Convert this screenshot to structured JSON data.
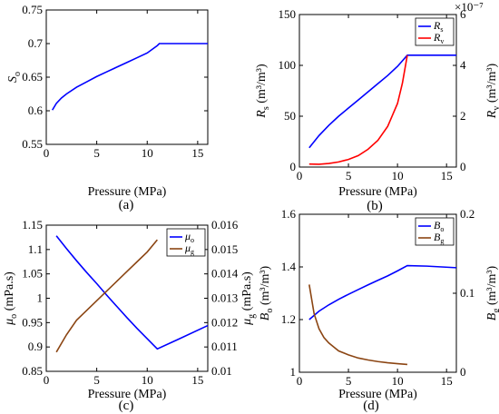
{
  "chart_data": [
    {
      "type": "line",
      "panel": "a",
      "caption": "(a)",
      "xlabel": "Pressure (MPa)",
      "ylabel": "S_o",
      "xlim": [
        0,
        16
      ],
      "ylim": [
        0.55,
        0.75
      ],
      "xticks": [
        0,
        5,
        10,
        15
      ],
      "yticks": [
        0.55,
        0.6,
        0.65,
        0.7,
        0.75
      ],
      "ytick_labels": [
        "0.55",
        "0.6",
        "0.65",
        "0.7",
        "0.75"
      ],
      "series": [
        {
          "axis": "left",
          "color": "#0000ff",
          "x": [
            0.6,
            1,
            1.5,
            2,
            3,
            4,
            5,
            6,
            7,
            8,
            9,
            10,
            11,
            11.2,
            13,
            16
          ],
          "y": [
            0.601,
            0.611,
            0.619,
            0.625,
            0.635,
            0.643,
            0.651,
            0.658,
            0.665,
            0.672,
            0.679,
            0.686,
            0.697,
            0.7,
            0.7,
            0.7
          ]
        }
      ]
    },
    {
      "type": "line",
      "panel": "b",
      "caption": "(b)",
      "xlabel": "Pressure (MPa)",
      "ylabel": "R_s (m^3/m^3)",
      "ylabel_main": "R",
      "ylabel_sub": "s",
      "ylabel_unit": " (m³/m³)",
      "y2label": "R_v (m^3/m^3)",
      "y2label_main": "R",
      "y2label_sub": "v",
      "y2label_unit": " (m³/m³)",
      "y2_exponent": "×10⁻⁷",
      "xlim": [
        0,
        16
      ],
      "ylim": [
        0,
        150
      ],
      "y2lim": [
        0,
        6
      ],
      "xticks": [
        0,
        5,
        10,
        15
      ],
      "yticks": [
        0,
        50,
        100,
        150
      ],
      "y2ticks": [
        0,
        2,
        4,
        6
      ],
      "legend": [
        "R_s",
        "R_v"
      ],
      "legend_main": [
        "R",
        "R"
      ],
      "legend_sub": [
        "s",
        "v"
      ],
      "series": [
        {
          "name": "R_s",
          "axis": "left",
          "color": "#0000ff",
          "x": [
            1,
            2,
            3,
            4,
            5,
            6,
            7,
            8,
            9,
            10,
            11,
            13,
            16
          ],
          "y": [
            19,
            31,
            41,
            50,
            58,
            66,
            74,
            82,
            90,
            99,
            110,
            110,
            110
          ]
        },
        {
          "name": "R_v",
          "axis": "right",
          "color": "#ff0000",
          "x": [
            1,
            2,
            3,
            4,
            5,
            6,
            7,
            8,
            9,
            10,
            10.5,
            11
          ],
          "y": [
            0.12,
            0.11,
            0.14,
            0.2,
            0.3,
            0.45,
            0.7,
            1.05,
            1.6,
            2.5,
            3.3,
            4.4
          ]
        }
      ]
    },
    {
      "type": "line",
      "panel": "c",
      "caption": "(c)",
      "xlabel": "Pressure (MPa)",
      "ylabel": "μ_o (mPa.s)",
      "ylabel_main": "μ",
      "ylabel_sub": "o",
      "ylabel_unit": " (mPa.s)",
      "y2label": "μ_g (mPa.s)",
      "y2label_main": "μ",
      "y2label_sub": "g",
      "y2label_unit": " (mPa.s)",
      "xlim": [
        0,
        16
      ],
      "ylim": [
        0.85,
        1.15
      ],
      "y2lim": [
        0.01,
        0.016
      ],
      "xticks": [
        0,
        5,
        10,
        15
      ],
      "yticks": [
        0.85,
        0.9,
        0.95,
        1,
        1.05,
        1.1,
        1.15
      ],
      "ytick_labels": [
        "0.85",
        "0.9",
        "0.95",
        "1",
        "1.05",
        "1.1",
        "1.15"
      ],
      "y2ticks": [
        0.01,
        0.011,
        0.012,
        0.013,
        0.014,
        0.015,
        0.016
      ],
      "y2tick_labels": [
        "0.01",
        "0.011",
        "0.012",
        "0.013",
        "0.014",
        "0.015",
        "0.016"
      ],
      "legend": [
        "μ_o",
        "μ_g"
      ],
      "legend_main": [
        "μ",
        "μ"
      ],
      "legend_sub": [
        "o",
        "g"
      ],
      "series": [
        {
          "name": "μ_o",
          "axis": "left",
          "color": "#0000ff",
          "x": [
            1,
            2,
            3,
            4,
            5,
            6,
            7,
            8,
            9,
            10,
            11,
            13,
            16
          ],
          "y": [
            1.128,
            1.102,
            1.077,
            1.053,
            1.03,
            1.006,
            0.983,
            0.96,
            0.938,
            0.917,
            0.896,
            0.915,
            0.944
          ]
        },
        {
          "name": "μ_g",
          "axis": "right",
          "color": "#8b4513",
          "x": [
            1,
            2,
            3,
            4,
            5,
            6,
            7,
            8,
            9,
            10,
            11
          ],
          "y": [
            0.01079,
            0.0115,
            0.0121,
            0.0125,
            0.0129,
            0.0133,
            0.0137,
            0.0141,
            0.0145,
            0.0149,
            0.0154
          ]
        }
      ]
    },
    {
      "type": "line",
      "panel": "d",
      "caption": "(d)",
      "xlabel": "Pressure (MPa)",
      "ylabel": "B_o (m^3/m^3)",
      "ylabel_main": "B",
      "ylabel_sub": "o",
      "ylabel_unit": " (m³/m³)",
      "y2label": "B_g (m^3/m^3)",
      "y2label_main": "B",
      "y2label_sub": "g",
      "y2label_unit": " (m³/m³)",
      "xlim": [
        0,
        16
      ],
      "ylim": [
        1,
        1.6
      ],
      "y2lim": [
        0,
        0.2
      ],
      "xticks": [
        0,
        5,
        10,
        15
      ],
      "yticks": [
        1,
        1.2,
        1.4,
        1.6
      ],
      "ytick_labels": [
        "1",
        "1.2",
        "1.4",
        "1.6"
      ],
      "y2ticks": [
        0,
        0.1,
        0.2
      ],
      "y2tick_labels": [
        "0",
        "0.1",
        "0.2"
      ],
      "legend": [
        "B_o",
        "B_g"
      ],
      "legend_main": [
        "B",
        "B"
      ],
      "legend_sub": [
        "o",
        "g"
      ],
      "series": [
        {
          "name": "B_o",
          "axis": "left",
          "color": "#0000ff",
          "x": [
            1,
            2,
            3,
            4,
            5,
            6,
            7,
            8,
            9,
            10,
            11,
            13,
            16
          ],
          "y": [
            1.2,
            1.232,
            1.256,
            1.277,
            1.296,
            1.314,
            1.332,
            1.349,
            1.366,
            1.385,
            1.405,
            1.403,
            1.397
          ]
        },
        {
          "name": "B_g",
          "axis": "right",
          "color": "#8b4513",
          "x": [
            1,
            1.5,
            2,
            2.5,
            3,
            4,
            5,
            6,
            7,
            8,
            9,
            10,
            11
          ],
          "y": [
            0.111,
            0.074,
            0.055,
            0.044,
            0.037,
            0.027,
            0.022,
            0.018,
            0.0155,
            0.0135,
            0.012,
            0.0108,
            0.0098
          ]
        }
      ]
    }
  ]
}
